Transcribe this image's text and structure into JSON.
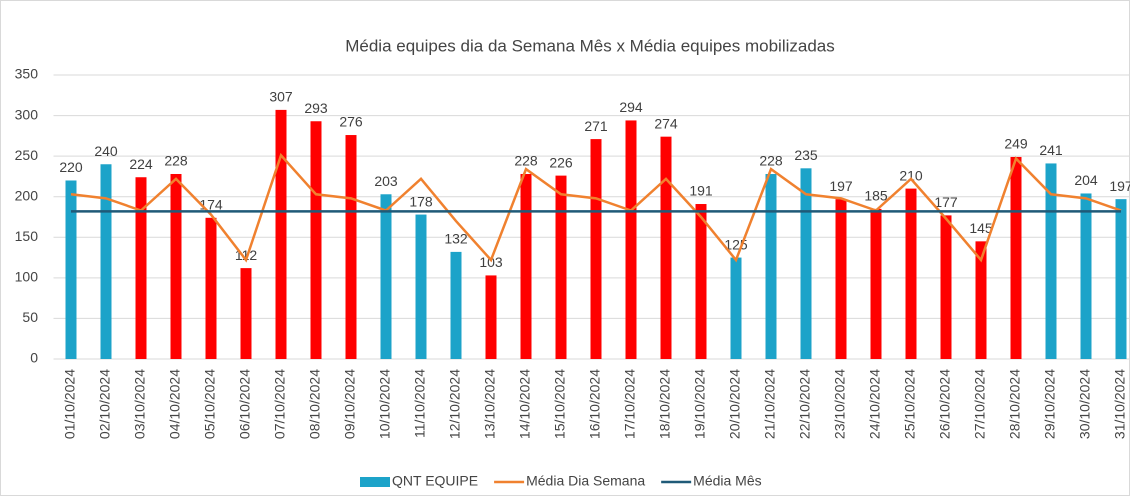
{
  "chart_data": {
    "type": "bar_line",
    "title": "Média equipes dia da Semana Mês x Média equipes mobilizadas",
    "categories": [
      "01/10/2024",
      "02/10/2024",
      "03/10/2024",
      "04/10/2024",
      "05/10/2024",
      "06/10/2024",
      "07/10/2024",
      "08/10/2024",
      "09/10/2024",
      "10/10/2024",
      "11/10/2024",
      "12/10/2024",
      "13/10/2024",
      "14/10/2024",
      "15/10/2024",
      "16/10/2024",
      "17/10/2024",
      "18/10/2024",
      "19/10/2024",
      "20/10/2024",
      "21/10/2024",
      "22/10/2024",
      "23/10/2024",
      "24/10/2024",
      "25/10/2024",
      "26/10/2024",
      "27/10/2024",
      "28/10/2024",
      "29/10/2024",
      "30/10/2024",
      "31/10/2024"
    ],
    "series": [
      {
        "name": "QNT EQUIPE",
        "type": "bar",
        "color": "#1ca3c9",
        "values": [
          220,
          240,
          224,
          228,
          174,
          112,
          307,
          293,
          276,
          203,
          178,
          132,
          103,
          228,
          226,
          271,
          294,
          274,
          191,
          125,
          228,
          235,
          197,
          185,
          210,
          177,
          145,
          249,
          241,
          204,
          197
        ],
        "colors": [
          "#1ca3c9",
          "#1ca3c9",
          "#ff0000",
          "#ff0000",
          "#ff0000",
          "#ff0000",
          "#ff0000",
          "#ff0000",
          "#ff0000",
          "#1ca3c9",
          "#1ca3c9",
          "#1ca3c9",
          "#ff0000",
          "#ff0000",
          "#ff0000",
          "#ff0000",
          "#ff0000",
          "#ff0000",
          "#ff0000",
          "#1ca3c9",
          "#1ca3c9",
          "#1ca3c9",
          "#ff0000",
          "#ff0000",
          "#ff0000",
          "#ff0000",
          "#ff0000",
          "#ff0000",
          "#1ca3c9",
          "#1ca3c9",
          "#1ca3c9"
        ]
      },
      {
        "name": "Média Dia Semana",
        "type": "line",
        "color": "#f0812f",
        "values": [
          203,
          198,
          183,
          222,
          178,
          122,
          251,
          203,
          198,
          183,
          222,
          170,
          122,
          234,
          203,
          198,
          183,
          222,
          175,
          122,
          234,
          203,
          198,
          183,
          222,
          173,
          122,
          247,
          203,
          198,
          183
        ]
      },
      {
        "name": "Média Mês",
        "type": "line",
        "color": "#1f5a78",
        "values": [
          182,
          182,
          182,
          182,
          182,
          182,
          182,
          182,
          182,
          182,
          182,
          182,
          182,
          182,
          182,
          182,
          182,
          182,
          182,
          182,
          182,
          182,
          182,
          182,
          182,
          182,
          182,
          182,
          182,
          182,
          182
        ]
      }
    ],
    "ylim": [
      0,
      350
    ],
    "yticks": [
      0,
      50,
      100,
      150,
      200,
      250,
      300,
      350
    ],
    "grid": true
  }
}
